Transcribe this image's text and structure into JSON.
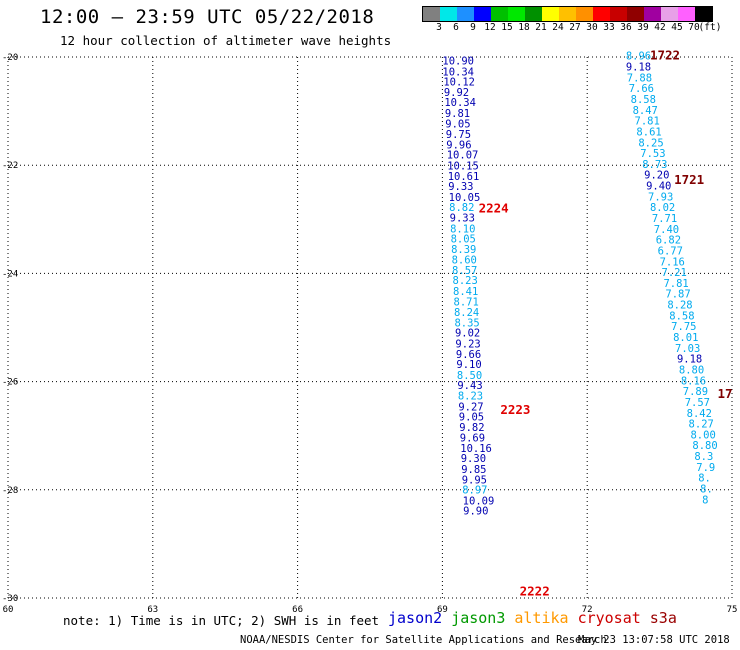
{
  "header": {
    "title": "12:00 – 23:59 UTC 05/22/2018",
    "subtitle": "12 hour collection of altimeter wave heights"
  },
  "colorbar": {
    "unit_label": "(ft)",
    "ticks": [
      "3",
      "6",
      "9",
      "12",
      "15",
      "18",
      "21",
      "24",
      "27",
      "30",
      "33",
      "36",
      "39",
      "42",
      "45",
      "70"
    ],
    "colors": [
      "#808080",
      "#00e8e8",
      "#1e90ff",
      "#0000ff",
      "#00c000",
      "#00e800",
      "#009000",
      "#ffff00",
      "#ffc000",
      "#ff9000",
      "#ff0000",
      "#c80000",
      "#900000",
      "#a000a0",
      "#e8a0e8",
      "#ff60ff",
      "#000000"
    ]
  },
  "footer": {
    "note": "note: 1) Time is in UTC; 2) SWH is in feet",
    "credit": "NOAA/NESDIS Center for Satellite Applications and Research",
    "timestamp": "May 23 13:07:58 UTC 2018",
    "legend": [
      {
        "name": "jason2",
        "color": "#0000cc"
      },
      {
        "name": "jason3",
        "color": "#009900"
      },
      {
        "name": "altika",
        "color": "#ff9900"
      },
      {
        "name": "cryosat",
        "color": "#cc0000"
      },
      {
        "name": "s3a",
        "color": "#990000"
      }
    ]
  },
  "chart_data": {
    "type": "scatter",
    "title": "12:00 – 23:59 UTC 05/22/2018",
    "subtitle": "12 hour collection of altimeter wave heights",
    "xlabel": "",
    "ylabel": "",
    "xlim": [
      60,
      75
    ],
    "ylim": [
      -30,
      -20
    ],
    "xticks": [
      "60",
      "63",
      "66",
      "69",
      "72",
      "75"
    ],
    "yticks": [
      "-20",
      "-22",
      "-24",
      "-26",
      "-28",
      "-30"
    ],
    "grid": true,
    "value_unit": "ft",
    "colors": {
      "dark": "#0000b0",
      "light": "#00aaee"
    },
    "pass_labels": [
      {
        "text": "2224",
        "lon": 69.75,
        "lat": -22.87,
        "color": "#e00000"
      },
      {
        "text": "2223",
        "lon": 70.2,
        "lat": -26.6,
        "color": "#e00000"
      },
      {
        "text": "2222",
        "lon": 70.6,
        "lat": -29.95,
        "color": "#e00000"
      },
      {
        "text": "1722",
        "lon": 73.3,
        "lat": -20.05,
        "color": "#800000"
      },
      {
        "text": "1721",
        "lon": 73.8,
        "lat": -22.35,
        "color": "#800000"
      },
      {
        "text": "17",
        "lon": 74.7,
        "lat": -26.3,
        "color": "#800000"
      }
    ],
    "series": [
      {
        "id": "pass_2224_2222",
        "points": [
          {
            "lon": 69.0,
            "lat": -20.14,
            "v": "10.90",
            "c": "dark"
          },
          {
            "lon": 69.0,
            "lat": -20.34,
            "v": "10.34",
            "c": "dark"
          },
          {
            "lon": 69.02,
            "lat": -20.53,
            "v": "10.12",
            "c": "dark"
          },
          {
            "lon": 69.03,
            "lat": -20.72,
            "v": "9.92",
            "c": "dark"
          },
          {
            "lon": 69.04,
            "lat": -20.91,
            "v": "10.34",
            "c": "dark"
          },
          {
            "lon": 69.05,
            "lat": -21.11,
            "v": "9.81",
            "c": "dark"
          },
          {
            "lon": 69.06,
            "lat": -21.3,
            "v": "9.05",
            "c": "dark"
          },
          {
            "lon": 69.07,
            "lat": -21.5,
            "v": "9.75",
            "c": "dark"
          },
          {
            "lon": 69.08,
            "lat": -21.69,
            "v": "9.96",
            "c": "dark"
          },
          {
            "lon": 69.09,
            "lat": -21.88,
            "v": "10.07",
            "c": "dark"
          },
          {
            "lon": 69.1,
            "lat": -22.08,
            "v": "10.15",
            "c": "dark"
          },
          {
            "lon": 69.11,
            "lat": -22.27,
            "v": "10.61",
            "c": "dark"
          },
          {
            "lon": 69.12,
            "lat": -22.46,
            "v": "9.33",
            "c": "dark"
          },
          {
            "lon": 69.13,
            "lat": -22.66,
            "v": "10.05",
            "c": "dark"
          },
          {
            "lon": 69.14,
            "lat": -22.85,
            "v": "8.82",
            "c": "light"
          },
          {
            "lon": 69.15,
            "lat": -23.04,
            "v": "9.33",
            "c": "dark"
          },
          {
            "lon": 69.16,
            "lat": -23.24,
            "v": "8.10",
            "c": "light"
          },
          {
            "lon": 69.17,
            "lat": -23.43,
            "v": "8.05",
            "c": "light"
          },
          {
            "lon": 69.18,
            "lat": -23.62,
            "v": "8.39",
            "c": "light"
          },
          {
            "lon": 69.19,
            "lat": -23.82,
            "v": "8.60",
            "c": "light"
          },
          {
            "lon": 69.2,
            "lat": -24.01,
            "v": "8.57",
            "c": "light"
          },
          {
            "lon": 69.21,
            "lat": -24.2,
            "v": "8.23",
            "c": "light"
          },
          {
            "lon": 69.22,
            "lat": -24.4,
            "v": "8.41",
            "c": "light"
          },
          {
            "lon": 69.23,
            "lat": -24.59,
            "v": "8.71",
            "c": "light"
          },
          {
            "lon": 69.24,
            "lat": -24.79,
            "v": "8.24",
            "c": "light"
          },
          {
            "lon": 69.25,
            "lat": -24.98,
            "v": "8.35",
            "c": "light"
          },
          {
            "lon": 69.26,
            "lat": -25.17,
            "v": "9.02",
            "c": "dark"
          },
          {
            "lon": 69.27,
            "lat": -25.37,
            "v": "9.23",
            "c": "dark"
          },
          {
            "lon": 69.28,
            "lat": -25.56,
            "v": "9.66",
            "c": "dark"
          },
          {
            "lon": 69.29,
            "lat": -25.75,
            "v": "9.10",
            "c": "dark"
          },
          {
            "lon": 69.3,
            "lat": -25.95,
            "v": "8.50",
            "c": "light"
          },
          {
            "lon": 69.31,
            "lat": -26.14,
            "v": "9.43",
            "c": "dark"
          },
          {
            "lon": 69.32,
            "lat": -26.33,
            "v": "8.23",
            "c": "light"
          },
          {
            "lon": 69.33,
            "lat": -26.53,
            "v": "9.27",
            "c": "dark"
          },
          {
            "lon": 69.34,
            "lat": -26.72,
            "v": "9.05",
            "c": "dark"
          },
          {
            "lon": 69.35,
            "lat": -26.91,
            "v": "9.82",
            "c": "dark"
          },
          {
            "lon": 69.36,
            "lat": -27.11,
            "v": "9.69",
            "c": "dark"
          },
          {
            "lon": 69.37,
            "lat": -27.3,
            "v": "10.16",
            "c": "dark"
          },
          {
            "lon": 69.38,
            "lat": -27.49,
            "v": "9.30",
            "c": "dark"
          },
          {
            "lon": 69.39,
            "lat": -27.69,
            "v": "9.85",
            "c": "dark"
          },
          {
            "lon": 69.4,
            "lat": -27.88,
            "v": "9.95",
            "c": "dark"
          },
          {
            "lon": 69.41,
            "lat": -28.07,
            "v": "8.97",
            "c": "light"
          },
          {
            "lon": 69.42,
            "lat": -28.27,
            "v": "10.09",
            "c": "dark"
          },
          {
            "lon": 69.43,
            "lat": -28.46,
            "v": "9.90",
            "c": "dark"
          }
        ]
      },
      {
        "id": "pass_1722_1721",
        "points": [
          {
            "lon": 72.8,
            "lat": -20.05,
            "v": "8.96",
            "c": "light"
          },
          {
            "lon": 72.8,
            "lat": -20.25,
            "v": "9.18",
            "c": "dark"
          },
          {
            "lon": 72.82,
            "lat": -20.45,
            "v": "7.88",
            "c": "light"
          },
          {
            "lon": 72.86,
            "lat": -20.65,
            "v": "7.66",
            "c": "light"
          },
          {
            "lon": 72.9,
            "lat": -20.85,
            "v": "8.58",
            "c": "light"
          },
          {
            "lon": 72.94,
            "lat": -21.05,
            "v": "8.47",
            "c": "light"
          },
          {
            "lon": 72.98,
            "lat": -21.25,
            "v": "7.81",
            "c": "light"
          },
          {
            "lon": 73.02,
            "lat": -21.45,
            "v": "8.61",
            "c": "light"
          },
          {
            "lon": 73.06,
            "lat": -21.65,
            "v": "8.25",
            "c": "light"
          },
          {
            "lon": 73.1,
            "lat": -21.85,
            "v": "7.53",
            "c": "light"
          },
          {
            "lon": 73.14,
            "lat": -22.05,
            "v": "8.73",
            "c": "light"
          },
          {
            "lon": 73.18,
            "lat": -22.25,
            "v": "9.20",
            "c": "dark"
          },
          {
            "lon": 73.22,
            "lat": -22.45,
            "v": "9.40",
            "c": "dark"
          },
          {
            "lon": 73.26,
            "lat": -22.65,
            "v": "7.93",
            "c": "light"
          },
          {
            "lon": 73.3,
            "lat": -22.85,
            "v": "8.02",
            "c": "light"
          },
          {
            "lon": 73.34,
            "lat": -23.05,
            "v": "7.71",
            "c": "light"
          },
          {
            "lon": 73.38,
            "lat": -23.25,
            "v": "7.40",
            "c": "light"
          },
          {
            "lon": 73.42,
            "lat": -23.45,
            "v": "6.82",
            "c": "light"
          },
          {
            "lon": 73.46,
            "lat": -23.65,
            "v": "6.77",
            "c": "light"
          },
          {
            "lon": 73.5,
            "lat": -23.85,
            "v": "7.16",
            "c": "light"
          },
          {
            "lon": 73.54,
            "lat": -24.05,
            "v": "7.21",
            "c": "light"
          },
          {
            "lon": 73.58,
            "lat": -24.25,
            "v": "7.81",
            "c": "light"
          },
          {
            "lon": 73.62,
            "lat": -24.45,
            "v": "7.87",
            "c": "light"
          },
          {
            "lon": 73.66,
            "lat": -24.65,
            "v": "8.28",
            "c": "light"
          },
          {
            "lon": 73.7,
            "lat": -24.85,
            "v": "8.58",
            "c": "light"
          },
          {
            "lon": 73.74,
            "lat": -25.05,
            "v": "7.75",
            "c": "light"
          },
          {
            "lon": 73.78,
            "lat": -25.25,
            "v": "8.01",
            "c": "light"
          },
          {
            "lon": 73.82,
            "lat": -25.45,
            "v": "7.03",
            "c": "light"
          },
          {
            "lon": 73.86,
            "lat": -25.65,
            "v": "9.18",
            "c": "dark"
          },
          {
            "lon": 73.9,
            "lat": -25.85,
            "v": "8.80",
            "c": "light"
          },
          {
            "lon": 73.94,
            "lat": -26.05,
            "v": "8.16",
            "c": "light"
          },
          {
            "lon": 73.98,
            "lat": -26.25,
            "v": "7.89",
            "c": "light"
          },
          {
            "lon": 74.02,
            "lat": -26.45,
            "v": "7.57",
            "c": "light"
          },
          {
            "lon": 74.06,
            "lat": -26.65,
            "v": "8.42",
            "c": "light"
          },
          {
            "lon": 74.1,
            "lat": -26.85,
            "v": "8.27",
            "c": "light"
          },
          {
            "lon": 74.14,
            "lat": -27.05,
            "v": "8.00",
            "c": "light"
          },
          {
            "lon": 74.18,
            "lat": -27.25,
            "v": "8.80",
            "c": "light"
          },
          {
            "lon": 74.22,
            "lat": -27.45,
            "v": "8.3",
            "c": "light"
          },
          {
            "lon": 74.26,
            "lat": -27.65,
            "v": "7.9",
            "c": "light"
          },
          {
            "lon": 74.3,
            "lat": -27.85,
            "v": "8.",
            "c": "light"
          },
          {
            "lon": 74.34,
            "lat": -28.05,
            "v": "8.",
            "c": "light"
          },
          {
            "lon": 74.38,
            "lat": -28.25,
            "v": "8",
            "c": "light"
          }
        ]
      }
    ]
  }
}
